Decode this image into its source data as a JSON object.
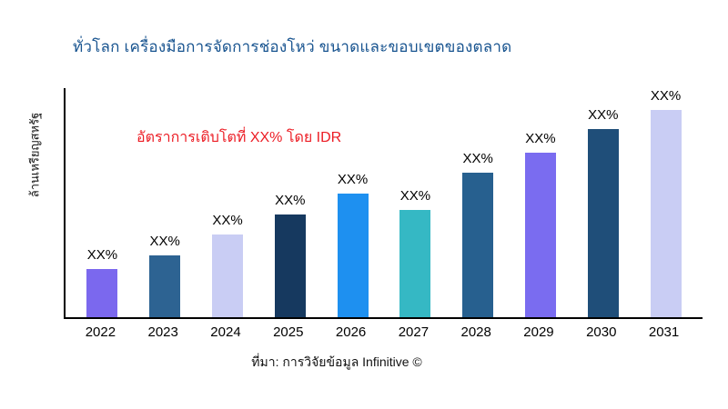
{
  "title": "ทั่วโลก เครื่องมือการจัดการช่องโหว่ ขนาดและขอบเขตของตลาด",
  "annotation": "อัตราการเติบโตที่ XX% โดย IDR",
  "source": "ที่มา: การวิจัยข้อมูล Infinitive ©",
  "colors": {
    "title": "#17538f",
    "annotation": "#ec1c24",
    "axis": "#000000"
  },
  "chart_data": {
    "type": "bar",
    "title": "ทั่วโลก เครื่องมือการจัดการช่องโหว่ ขนาดและขอบเขตของตลาด",
    "xlabel": "",
    "ylabel": "ล้านเหรียญสหรัฐ",
    "categories": [
      "2022",
      "2023",
      "2024",
      "2025",
      "2026",
      "2027",
      "2028",
      "2029",
      "2030",
      "2031"
    ],
    "values": [
      21,
      27,
      36,
      45,
      54,
      47,
      63,
      72,
      82,
      91
    ],
    "values_unit": "percent-of-plot-height (actual values shown only as XX% placeholders)",
    "bar_labels": [
      "XX%",
      "XX%",
      "XX%",
      "XX%",
      "XX%",
      "XX%",
      "XX%",
      "XX%",
      "XX%",
      "XX%"
    ],
    "bar_colors": [
      "#7b68ee",
      "#2d6392",
      "#c9cdf4",
      "#16395f",
      "#1e90f0",
      "#35b8c4",
      "#27608f",
      "#7a6cf0",
      "#1f4e79",
      "#c9cdf4"
    ],
    "grid": false,
    "legend": "none",
    "annotation": "อัตราการเติบโตที่ XX% โดย IDR"
  }
}
